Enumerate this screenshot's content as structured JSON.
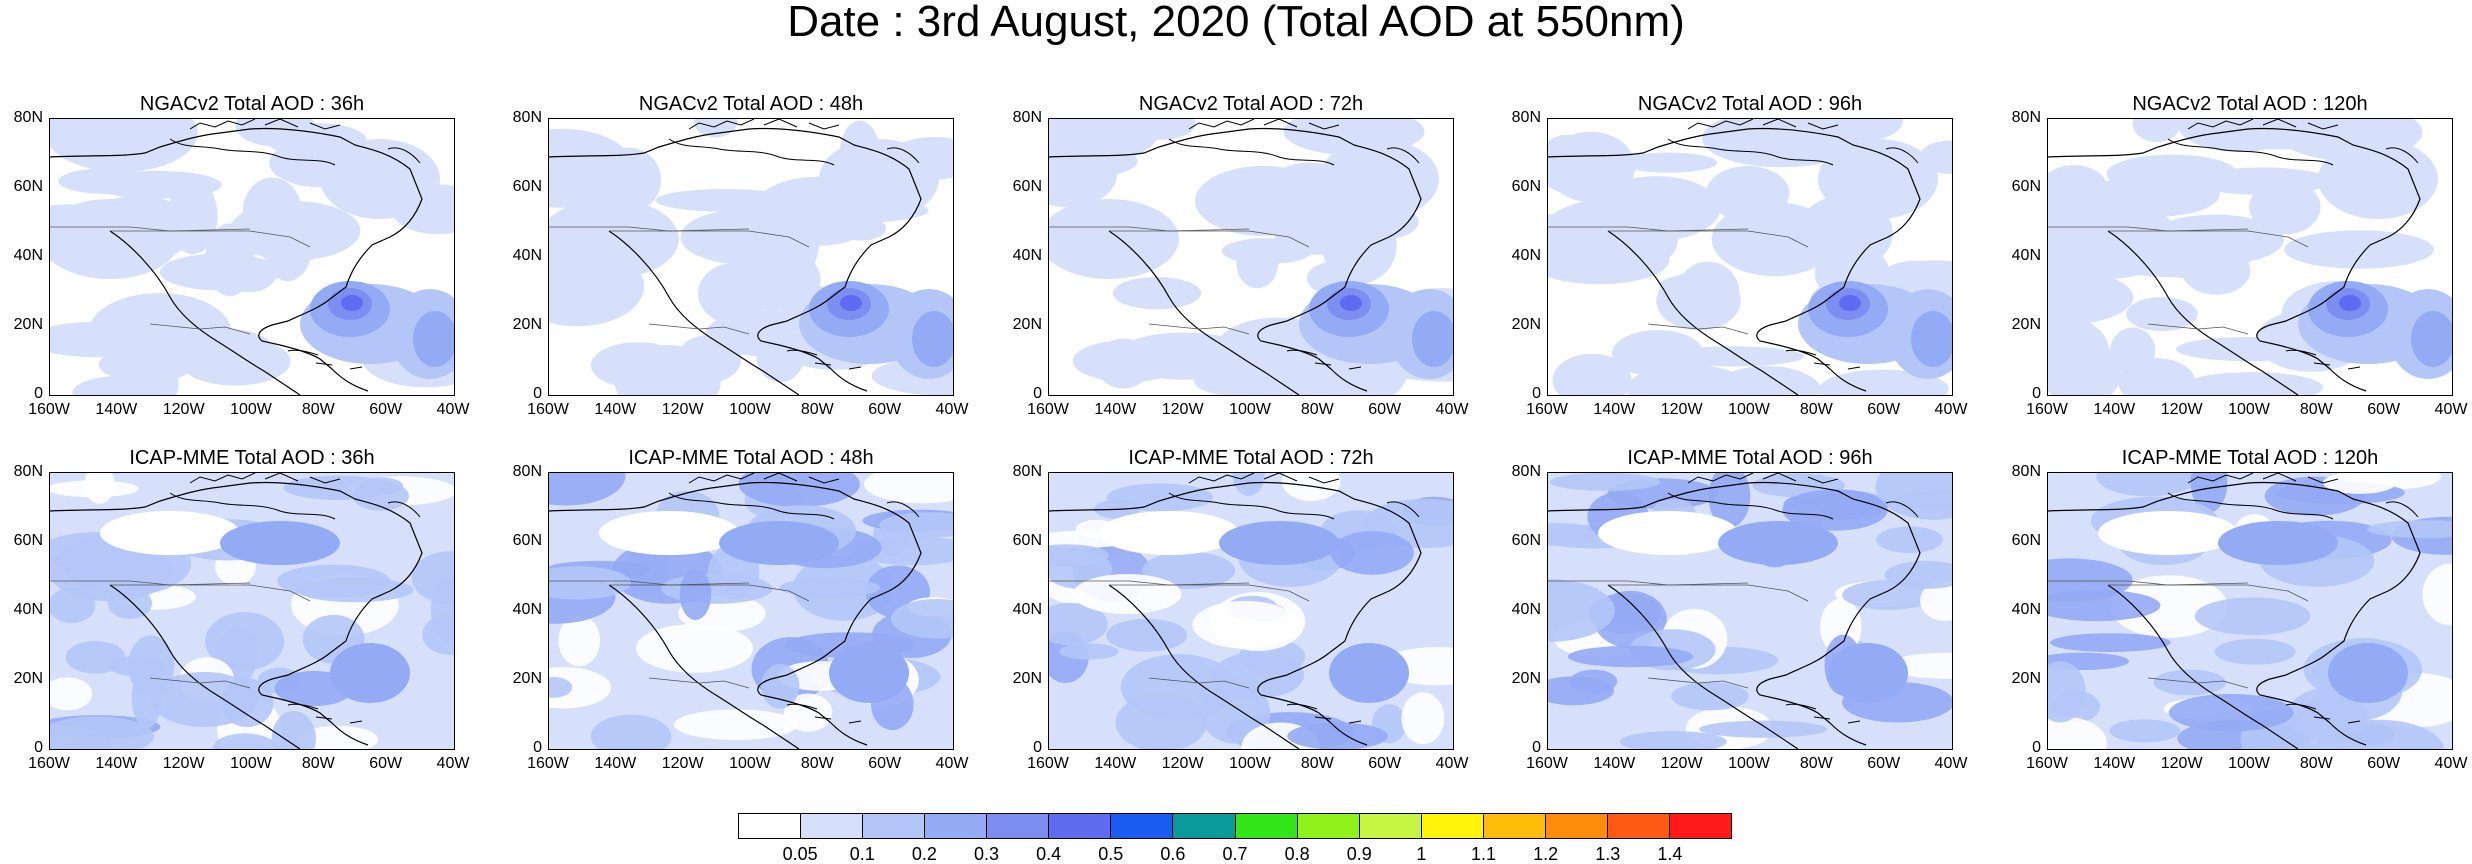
{
  "title": "Date : 3rd August, 2020 (Total AOD at 550nm)",
  "panels_row1": [
    {
      "title": "NGACv2 Total AOD : 36h"
    },
    {
      "title": "NGACv2 Total AOD : 48h"
    },
    {
      "title": "NGACv2 Total AOD : 72h"
    },
    {
      "title": "NGACv2 Total AOD : 96h"
    },
    {
      "title": "NGACv2 Total AOD : 120h"
    }
  ],
  "panels_row2": [
    {
      "title": "ICAP-MME Total AOD : 36h"
    },
    {
      "title": "ICAP-MME Total AOD : 48h"
    },
    {
      "title": "ICAP-MME Total AOD : 72h"
    },
    {
      "title": "ICAP-MME Total AOD : 96h"
    },
    {
      "title": "ICAP-MME Total AOD : 120h"
    }
  ],
  "lat_ticks": [
    "80N",
    "60N",
    "40N",
    "20N",
    "0"
  ],
  "lon_ticks": [
    "160W",
    "140W",
    "120W",
    "100W",
    "80W",
    "60W",
    "40W"
  ],
  "colorbar": {
    "labels": [
      "0.05",
      "0.1",
      "0.2",
      "0.3",
      "0.4",
      "0.5",
      "0.6",
      "0.7",
      "0.8",
      "0.9",
      "1",
      "1.1",
      "1.2",
      "1.3",
      "1.4"
    ],
    "colors": [
      "#ffffff",
      "#d6e0fb",
      "#b4c6f7",
      "#93aaf4",
      "#7c8ef0",
      "#5d6cf0",
      "#1a5cf2",
      "#0a9a9a",
      "#33e61a",
      "#8ff21a",
      "#c6f542",
      "#fff50a",
      "#ffbd0a",
      "#ff8c0a",
      "#ff5a14",
      "#ff1a1a"
    ]
  }
}
